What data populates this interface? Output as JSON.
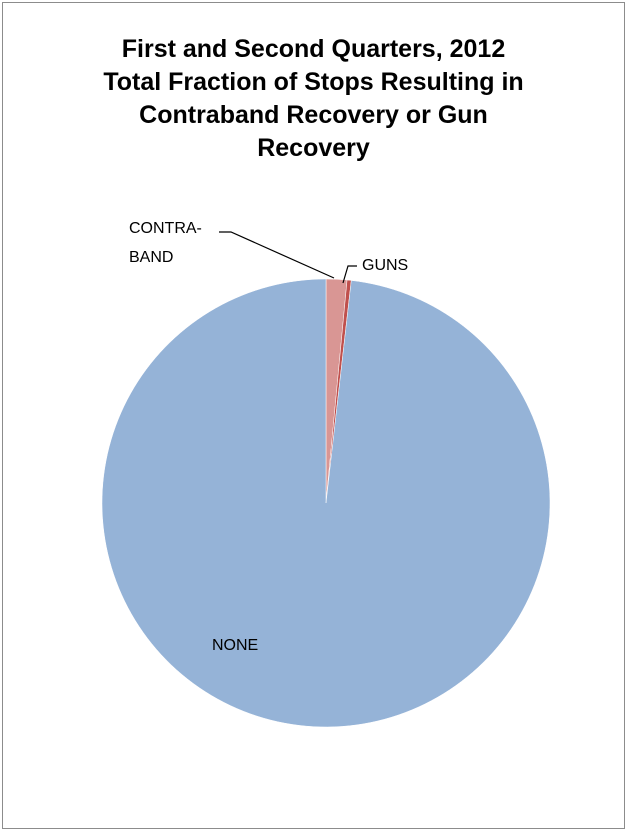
{
  "chart_data": {
    "type": "pie",
    "title_lines": [
      "First and Second Quarters, 2012",
      "Total Fraction of Stops Resulting in",
      "Contraband Recovery or Gun",
      "Recovery"
    ],
    "slices": [
      {
        "name": "CONTRA-BAND",
        "label_lines": [
          "CONTRA-",
          "BAND"
        ],
        "value": 1.5,
        "color": "#D99694"
      },
      {
        "name": "GUNS",
        "label_lines": [
          "GUNS"
        ],
        "value": 0.3,
        "color": "#C0504D"
      },
      {
        "name": "NONE",
        "label_lines": [
          "NONE"
        ],
        "value": 98.2,
        "color": "#95B3D7"
      }
    ],
    "legend": "none"
  }
}
